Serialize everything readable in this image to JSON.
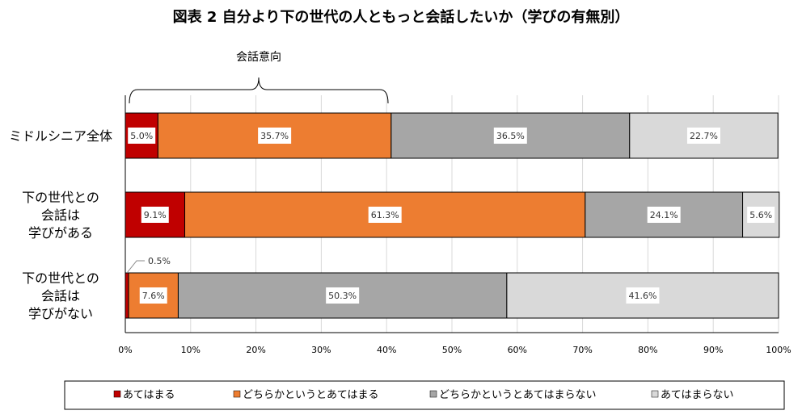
{
  "chart_data": {
    "type": "bar",
    "stacked": true,
    "orientation": "horizontal",
    "title": "図表 2  自分より下の世代の人ともっと会話したいか（学びの有無別）",
    "annotation": "会話意向",
    "categories": [
      [
        "ミドルシニア全体"
      ],
      [
        "下の世代との",
        "会話は",
        "学びがある"
      ],
      [
        "下の世代との",
        "会話は",
        "学びがない"
      ]
    ],
    "series": [
      {
        "name": "あてはまる",
        "color": "#c00000",
        "values": [
          5.0,
          9.1,
          0.5
        ]
      },
      {
        "name": "どちらかというとあてはまる",
        "color": "#ed7d31",
        "values": [
          35.7,
          61.3,
          7.6
        ]
      },
      {
        "name": "どちらかというとあてはまらない",
        "color": "#a6a6a6",
        "values": [
          36.5,
          24.1,
          50.3
        ]
      },
      {
        "name": "あてはまらない",
        "color": "#d9d9d9",
        "values": [
          22.7,
          5.6,
          41.6
        ]
      }
    ],
    "xlim": [
      0,
      100
    ],
    "xticks": [
      "0%",
      "10%",
      "20%",
      "30%",
      "40%",
      "50%",
      "60%",
      "70%",
      "80%",
      "90%",
      "100%"
    ],
    "grid": true,
    "legend": "bottom"
  }
}
